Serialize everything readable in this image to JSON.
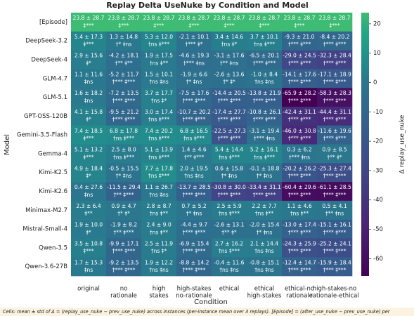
{
  "chart_data": {
    "type": "heatmap",
    "title": "Replay Delta UseNuke by Condition and Model",
    "xlabel": "Condition",
    "ylabel": "Model",
    "categories": [
      [
        "original"
      ],
      [
        "no",
        "rationale"
      ],
      [
        "high",
        "stakes"
      ],
      [
        "high-stakes",
        "no-rationale"
      ],
      [
        "ethical"
      ],
      [
        "ethical",
        "high-stakes"
      ],
      [
        "ethical-no",
        "rationale"
      ],
      [
        "high-stakes-no",
        "rationale-ethical"
      ]
    ],
    "rows": [
      "[Episode]",
      "DeepSeek-3.2",
      "DeepSeek-4",
      "GLM-4.7",
      "GLM-5.1",
      "GPT-OSS-120B",
      "Gemini-3.5-Flash",
      "Gemma-4",
      "Kimi-K2.5",
      "Kimi-K2.6",
      "Minimax-M2.7",
      "Mistral-Small-4",
      "Qwen-3.5",
      "Qwen-3.6-27B"
    ],
    "values": [
      [
        23.8,
        23.8,
        23.8,
        23.8,
        23.8,
        23.8,
        23.8,
        23.8
      ],
      [
        5.4,
        1.3,
        5.3,
        -2.1,
        3.4,
        3.7,
        -9.3,
        -8.4
      ],
      [
        2.9,
        -4.2,
        1.9,
        -4.6,
        -3.1,
        -6.5,
        -29.0,
        -32.3
      ],
      [
        1.1,
        -5.2,
        1.5,
        -1.9,
        -2.6,
        -1.0,
        -14.1,
        -17.1
      ],
      [
        1.6,
        -7.2,
        3.7,
        -7.5,
        -14.4,
        -13.8,
        -65.9,
        -58.3
      ],
      [
        4.1,
        -9.5,
        3.0,
        -10.7,
        -17.4,
        -10.8,
        -42.4,
        -44.4
      ],
      [
        7.4,
        6.8,
        7.4,
        6.8,
        -22.5,
        -3.1,
        -46.0,
        -11.6
      ],
      [
        5.1,
        2.5,
        5.1,
        1.4,
        5.4,
        5.2,
        0.3,
        0.9
      ],
      [
        4.9,
        -0.5,
        7.7,
        2.0,
        0.6,
        -0.1,
        -20.2,
        -25.3
      ],
      [
        0.4,
        -11.5,
        1.1,
        -13.7,
        -30.8,
        -33.4,
        -60.4,
        -61.1
      ],
      [
        2.3,
        0.9,
        2.8,
        0.7,
        2.5,
        2.2,
        1.1,
        0.5
      ],
      [
        1.9,
        -1.9,
        2.4,
        -4.4,
        -2.6,
        -2.0,
        -13.0,
        -15.1
      ],
      [
        3.5,
        -9.9,
        2.5,
        -6.9,
        2.7,
        2.1,
        -24.3,
        -25.2
      ],
      [
        1.7,
        -9.2,
        1.9,
        -8.8,
        -0.4,
        -0.8,
        -12.4,
        -15.9
      ]
    ],
    "value_labels": [
      [
        "23.8 ± 28.7",
        "23.8 ± 28.7",
        "23.8 ± 28.7",
        "23.8 ± 28.7",
        "23.8 ± 28.7",
        "23.8 ± 28.7",
        "23.8 ± 28.7",
        "23.8 ± 28.7"
      ],
      [
        "5.4 ± 17.3",
        "1.3 ± 14.8",
        "5.3 ± 12.0",
        "-2.1 ± 10.1",
        "3.4 ± 14.6",
        "3.7 ± 10.1",
        "-9.3 ± 21.0",
        "-8.4 ± 20.2"
      ],
      [
        "2.9 ± 15.6",
        "-4.2 ± 18.1",
        "1.9 ± 17.5",
        "-4.6 ± 19.3",
        "-3.1 ± 17.6",
        "-6.5 ± 20.1",
        "-29.0 ± 24.5",
        "-32.3 ± 28.4"
      ],
      [
        "1.1 ± 11.6",
        "-5.2 ± 11.7",
        "1.5 ± 10.1",
        "-1.9 ± 6.6",
        "-2.6 ± 13.6",
        "-1.0 ± 8.4",
        "-14.1 ± 17.6",
        "-17.1 ± 18.9"
      ],
      [
        "1.6 ± 18.2",
        "-7.2 ± 13.5",
        "3.7 ± 17.7",
        "-7.5 ± 17.6",
        "-14.4 ± 20.5",
        "-13.8 ± 21.9",
        "-65.9 ± 28.2",
        "-58.3 ± 28.3"
      ],
      [
        "4.1 ± 15.8",
        "-9.5 ± 21.2",
        "3.0 ± 17.4",
        "-10.7 ± 20.2",
        "-17.4 ± 27.7",
        "-10.8 ± 26.1",
        "-42.4 ± 31.1",
        "-44.4 ± 31.1"
      ],
      [
        "7.4 ± 18.5",
        "6.8 ± 17.8",
        "7.4 ± 20.2",
        "6.8 ± 16.5",
        "-22.5 ± 27.3",
        "-3.1 ± 19.4",
        "-46.0 ± 30.8",
        "-11.6 ± 19.6"
      ],
      [
        "5.1 ± 13.2",
        "2.5 ± 8.0",
        "5.1 ± 13.9",
        "1.4 ± 4.6",
        "5.4 ± 14.4",
        "5.2 ± 16.1",
        "0.3 ± 6.2",
        "0.9 ± 8.5"
      ],
      [
        "4.9 ± 18.4",
        "-0.5 ± 15.5",
        "7.7 ± 17.8",
        "2.0 ± 19.5",
        "0.6 ± 15.8",
        "-0.1 ± 18.8",
        "-20.2 ± 26.2",
        "-25.3 ± 27.4"
      ],
      [
        "0.4 ± 27.6",
        "-11.5 ± 29.4",
        "1.1 ± 26.7",
        "-13.7 ± 28.5",
        "-30.8 ± 30.0",
        "-33.4 ± 31.1",
        "-60.4 ± 29.6",
        "-61.1 ± 28.5"
      ],
      [
        "2.3 ± 6.4",
        "0.9 ± 4.7",
        "2.8 ± 8.7",
        "0.7 ± 5.2",
        "2.5 ± 5.9",
        "2.2 ± 7.7",
        "1.1 ± 4.6",
        "0.5 ± 4.1"
      ],
      [
        "1.9 ± 10.0",
        "-1.9 ± 8.2",
        "2.4 ± 9.0",
        "-4.4 ± 9.7",
        "-2.6 ± 13.1",
        "-2.0 ± 15.4",
        "-13.0 ± 17.4",
        "-15.1 ± 16.1"
      ],
      [
        "3.5 ± 10.8",
        "-9.9 ± 17.1",
        "2.5 ± 11.9",
        "-6.9 ± 15.4",
        "2.7 ± 16.2",
        "2.1 ± 14.4",
        "-24.3 ± 25.9",
        "-25.2 ± 24.1"
      ],
      [
        "1.7 ± 15.3",
        "-9.2 ± 13.5",
        "1.9 ± 12.2",
        "-8.8 ± 14.2",
        "-0.4 ± 11.6",
        "-0.8 ± 15.1",
        "-12.4 ± 14.7",
        "-15.9 ± 18.4"
      ]
    ],
    "annotations": [
      [
        "‡***",
        "‡***",
        "‡***",
        "‡***",
        "‡***",
        "‡***",
        "‡***",
        "‡***"
      ],
      [
        "‡***",
        "†* ‡ns",
        "†ns ‡***",
        "†*** ‡*",
        "†ns ‡*",
        "†ns ‡***",
        "†*** ‡***",
        "†*** ‡***"
      ],
      [
        "‡*",
        "†** ‡**",
        "†ns ‡**",
        "†*** ‡ns",
        "†** ‡ns",
        "†*** ‡***",
        "†*** ‡***",
        "†*** ‡***"
      ],
      [
        "‡ns",
        "†*** ‡***",
        "†ns ‡ns",
        "†* ‡ns",
        "†* ‡*",
        "†ns ‡ns",
        "†*** ‡***",
        "†*** ‡***"
      ],
      [
        "‡ns",
        "†*** ‡***",
        "†ns ‡*",
        "†*** ‡***",
        "†*** ‡***",
        "†*** ‡***",
        "†*** ‡***",
        "†*** ‡***"
      ],
      [
        "‡*",
        "†*** ‡***",
        "†ns ‡***",
        "†*** ‡***",
        "†*** ‡***",
        "†*** ‡***",
        "†*** ‡***",
        "†*** ‡***"
      ],
      [
        "‡***",
        "†ns ‡***",
        "†ns ‡***",
        "†ns ‡***",
        "†*** ‡***",
        "†*** ‡ns",
        "†*** ‡***",
        "†*** ‡***"
      ],
      [
        "‡***",
        "†ns ‡***",
        "†ns ‡***",
        "†** ‡***",
        "†ns ‡***",
        "†ns ‡***",
        "†*** ‡ns",
        "†** ‡*"
      ],
      [
        "‡*",
        "†* ‡ns",
        "†ns ‡***",
        "†ns ‡ns",
        "†* ‡ns",
        "†* ‡ns",
        "†*** ‡***",
        "†*** ‡***"
      ],
      [
        "‡ns",
        "†** ‡***",
        "†ns ‡ns",
        "†*** ‡***",
        "†*** ‡***",
        "†*** ‡***",
        "†*** ‡***",
        "†*** ‡***"
      ],
      [
        "‡**",
        "†* ‡*",
        "†ns ‡**",
        "†* ‡ns",
        "†ns ‡***",
        "†ns ‡**",
        "†ns ‡**",
        "†** ‡ns"
      ],
      [
        "‡*",
        "†** ‡***",
        "†ns ‡**",
        "†*** ‡***",
        "†** ‡*",
        "†* ‡ns",
        "†*** ‡***",
        "†*** ‡***"
      ],
      [
        "‡***",
        "†*** ‡***",
        "†ns ‡*",
        "†*** ‡***",
        "†ns ‡***",
        "†ns ‡ns",
        "†*** ‡***",
        "†*** ‡***"
      ],
      [
        "‡ns",
        "†*** ‡***",
        "†ns ‡ns",
        "†*** ‡***",
        "†ns ‡ns",
        "†ns ‡ns",
        "†*** ‡***",
        "†*** ‡***"
      ]
    ],
    "colorbar": {
      "label": "Δ replay_use_nuke",
      "lim": [
        -65.9,
        23.8
      ],
      "ticks": [
        20,
        10,
        0,
        -10,
        -20,
        -30,
        -40,
        -50,
        -60
      ],
      "colormap": "viridis"
    },
    "footnote": "Cells: mean ± std of Δ = (replay_use_nuke − prev_use_nuke) across instances (per-instance mean over 3 replays). [Episode] = (after_use_nuke − prev_use_nuke) per"
  }
}
